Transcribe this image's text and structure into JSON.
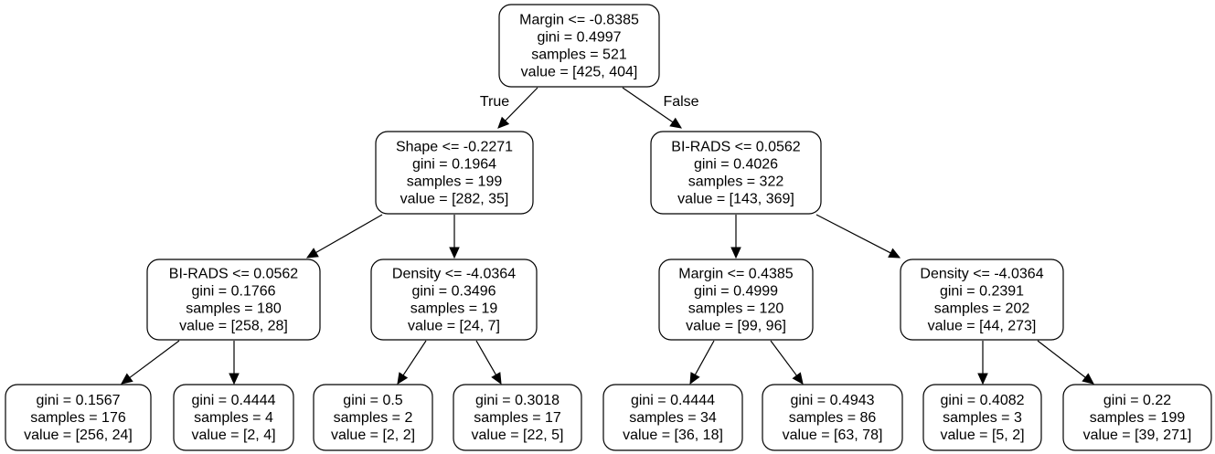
{
  "tree": {
    "nodes": [
      {
        "id": "n0",
        "lines": [
          "Margin <= -0.8385",
          "gini = 0.4997",
          "samples = 521",
          "value = [425, 404]"
        ]
      },
      {
        "id": "n1",
        "lines": [
          "Shape <= -0.2271",
          "gini = 0.1964",
          "samples = 199",
          "value = [282, 35]"
        ]
      },
      {
        "id": "n2",
        "lines": [
          "BI-RADS <= 0.0562",
          "gini = 0.4026",
          "samples = 322",
          "value = [143, 369]"
        ]
      },
      {
        "id": "n3",
        "lines": [
          "BI-RADS <= 0.0562",
          "gini = 0.1766",
          "samples = 180",
          "value = [258, 28]"
        ]
      },
      {
        "id": "n4",
        "lines": [
          "Density <= -4.0364",
          "gini = 0.3496",
          "samples = 19",
          "value = [24, 7]"
        ]
      },
      {
        "id": "n5",
        "lines": [
          "Margin <= 0.4385",
          "gini = 0.4999",
          "samples = 120",
          "value = [99, 96]"
        ]
      },
      {
        "id": "n6",
        "lines": [
          "Density <= -4.0364",
          "gini = 0.2391",
          "samples = 202",
          "value = [44, 273]"
        ]
      },
      {
        "id": "n7",
        "lines": [
          "gini = 0.1567",
          "samples = 176",
          "value = [256, 24]"
        ]
      },
      {
        "id": "n8",
        "lines": [
          "gini = 0.4444",
          "samples = 4",
          "value = [2, 4]"
        ]
      },
      {
        "id": "n9",
        "lines": [
          "gini = 0.5",
          "samples = 2",
          "value = [2, 2]"
        ]
      },
      {
        "id": "n10",
        "lines": [
          "gini = 0.3018",
          "samples = 17",
          "value = [22, 5]"
        ]
      },
      {
        "id": "n11",
        "lines": [
          "gini = 0.4444",
          "samples = 34",
          "value = [36, 18]"
        ]
      },
      {
        "id": "n12",
        "lines": [
          "gini = 0.4943",
          "samples = 86",
          "value = [63, 78]"
        ]
      },
      {
        "id": "n13",
        "lines": [
          "gini = 0.4082",
          "samples = 3",
          "value = [5, 2]"
        ]
      },
      {
        "id": "n14",
        "lines": [
          "gini = 0.22",
          "samples = 199",
          "value = [39, 271]"
        ]
      }
    ],
    "edges": [
      {
        "from": "n0",
        "to": "n1",
        "label": "True"
      },
      {
        "from": "n0",
        "to": "n2",
        "label": "False"
      },
      {
        "from": "n1",
        "to": "n3",
        "label": ""
      },
      {
        "from": "n1",
        "to": "n4",
        "label": ""
      },
      {
        "from": "n2",
        "to": "n5",
        "label": ""
      },
      {
        "from": "n2",
        "to": "n6",
        "label": ""
      },
      {
        "from": "n3",
        "to": "n7",
        "label": ""
      },
      {
        "from": "n3",
        "to": "n8",
        "label": ""
      },
      {
        "from": "n4",
        "to": "n9",
        "label": ""
      },
      {
        "from": "n4",
        "to": "n10",
        "label": ""
      },
      {
        "from": "n5",
        "to": "n11",
        "label": ""
      },
      {
        "from": "n5",
        "to": "n12",
        "label": ""
      },
      {
        "from": "n6",
        "to": "n13",
        "label": ""
      },
      {
        "from": "n6",
        "to": "n14",
        "label": ""
      }
    ]
  }
}
